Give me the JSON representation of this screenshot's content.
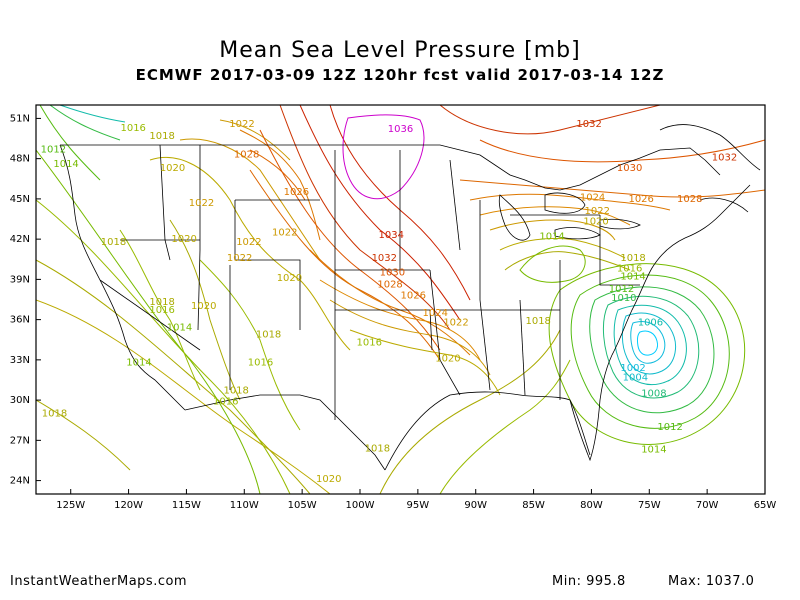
{
  "title": "Mean Sea Level Pressure [mb]",
  "subtitle": "ECMWF 2017-03-09 12Z 120hr fcst valid 2017-03-14 12Z",
  "footer": {
    "site": "InstantWeatherMaps.com",
    "min_label": "Min:",
    "min_value": "995.8",
    "max_label": "Max:",
    "max_value": "1037.0"
  },
  "axes": {
    "lat_ticks": [
      "51N",
      "48N",
      "45N",
      "42N",
      "39N",
      "36N",
      "33N",
      "30N",
      "27N",
      "24N"
    ],
    "lon_ticks": [
      "125W",
      "120W",
      "115W",
      "110W",
      "105W",
      "100W",
      "95W",
      "90W",
      "85W",
      "80W",
      "75W",
      "70W",
      "65W"
    ]
  },
  "chart_data": {
    "type": "contour-map",
    "variable": "Mean Sea Level Pressure",
    "units": "mb",
    "min": 995.8,
    "max": 1037.0,
    "extent": {
      "lon": [
        -128,
        -65
      ],
      "lat": [
        23,
        52
      ]
    },
    "contour_labels": [
      {
        "value": "1036",
        "lon": -96.5,
        "lat": 50.2,
        "color": "#cc00cc"
      },
      {
        "value": "1034",
        "lon": -97.3,
        "lat": 42.3,
        "color": "#cc2200"
      },
      {
        "value": "1032",
        "lon": -97.9,
        "lat": 40.6,
        "color": "#cc3300"
      },
      {
        "value": "1030",
        "lon": -97.2,
        "lat": 39.5,
        "color": "#dd5500"
      },
      {
        "value": "1028",
        "lon": -97.4,
        "lat": 38.6,
        "color": "#dd6600"
      },
      {
        "value": "1026",
        "lon": -95.4,
        "lat": 37.8,
        "color": "#dd7700"
      },
      {
        "value": "1024",
        "lon": -93.5,
        "lat": 36.5,
        "color": "#dd8800"
      },
      {
        "value": "1022",
        "lon": -91.7,
        "lat": 35.8,
        "color": "#cc9900"
      },
      {
        "value": "1020",
        "lon": -92.4,
        "lat": 33.1,
        "color": "#bbaa00"
      },
      {
        "value": "1018",
        "lon": -84.6,
        "lat": 35.9,
        "color": "#aaaa00"
      },
      {
        "value": "1032",
        "lon": -80.2,
        "lat": 50.6,
        "color": "#cc3300"
      },
      {
        "value": "1030",
        "lon": -76.7,
        "lat": 47.3,
        "color": "#dd5500"
      },
      {
        "value": "1032",
        "lon": -68.5,
        "lat": 48.1,
        "color": "#cc3300"
      },
      {
        "value": "1028",
        "lon": -71.5,
        "lat": 45.0,
        "color": "#dd6600"
      },
      {
        "value": "1026",
        "lon": -75.7,
        "lat": 45.0,
        "color": "#dd7700"
      },
      {
        "value": "1024",
        "lon": -79.9,
        "lat": 45.1,
        "color": "#dd8800"
      },
      {
        "value": "1022",
        "lon": -79.5,
        "lat": 44.1,
        "color": "#cc9900"
      },
      {
        "value": "1020",
        "lon": -79.6,
        "lat": 43.3,
        "color": "#bbaa00"
      },
      {
        "value": "1014",
        "lon": -83.4,
        "lat": 42.2,
        "color": "#77bb00"
      },
      {
        "value": "1018",
        "lon": -76.4,
        "lat": 40.6,
        "color": "#aaaa00"
      },
      {
        "value": "1016",
        "lon": -76.7,
        "lat": 39.8,
        "color": "#99bb00"
      },
      {
        "value": "1014",
        "lon": -76.4,
        "lat": 39.2,
        "color": "#77bb00"
      },
      {
        "value": "1012",
        "lon": -77.4,
        "lat": 38.3,
        "color": "#55bb11"
      },
      {
        "value": "1010",
        "lon": -77.2,
        "lat": 37.6,
        "color": "#33bb44"
      },
      {
        "value": "1006",
        "lon": -74.9,
        "lat": 35.8,
        "color": "#11bbaa"
      },
      {
        "value": "1002",
        "lon": -76.4,
        "lat": 32.4,
        "color": "#11bbdd"
      },
      {
        "value": "1004",
        "lon": -76.2,
        "lat": 31.7,
        "color": "#11bbcc"
      },
      {
        "value": "1008",
        "lon": -74.6,
        "lat": 30.5,
        "color": "#22bb77"
      },
      {
        "value": "1012",
        "lon": -73.2,
        "lat": 28.0,
        "color": "#55bb11"
      },
      {
        "value": "1014",
        "lon": -74.6,
        "lat": 26.3,
        "color": "#77bb00"
      },
      {
        "value": "1016",
        "lon": -119.6,
        "lat": 50.3,
        "color": "#99bb00"
      },
      {
        "value": "1018",
        "lon": -117.1,
        "lat": 49.7,
        "color": "#aaaa00"
      },
      {
        "value": "1022",
        "lon": -110.2,
        "lat": 50.6,
        "color": "#cc9900"
      },
      {
        "value": "1012",
        "lon": -126.5,
        "lat": 48.7,
        "color": "#55bb11"
      },
      {
        "value": "1014",
        "lon": -125.4,
        "lat": 47.6,
        "color": "#77bb00"
      },
      {
        "value": "1028",
        "lon": -109.8,
        "lat": 48.3,
        "color": "#dd6600"
      },
      {
        "value": "1020",
        "lon": -116.2,
        "lat": 47.3,
        "color": "#bbaa00"
      },
      {
        "value": "1026",
        "lon": -105.5,
        "lat": 45.5,
        "color": "#dd7700"
      },
      {
        "value": "1022",
        "lon": -113.7,
        "lat": 44.7,
        "color": "#cc9900"
      },
      {
        "value": "1020",
        "lon": -115.2,
        "lat": 42.0,
        "color": "#bbaa00"
      },
      {
        "value": "1018",
        "lon": -121.3,
        "lat": 41.8,
        "color": "#aaaa00"
      },
      {
        "value": "1022",
        "lon": -109.6,
        "lat": 41.8,
        "color": "#cc9900"
      },
      {
        "value": "1022",
        "lon": -110.4,
        "lat": 40.6,
        "color": "#cc9900"
      },
      {
        "value": "1020",
        "lon": -106.1,
        "lat": 39.1,
        "color": "#bbaa00"
      },
      {
        "value": "1022",
        "lon": -106.5,
        "lat": 42.5,
        "color": "#cc9900"
      },
      {
        "value": "1018",
        "lon": -117.1,
        "lat": 37.3,
        "color": "#aaaa00"
      },
      {
        "value": "1016",
        "lon": -117.1,
        "lat": 36.7,
        "color": "#99bb00"
      },
      {
        "value": "1020",
        "lon": -113.5,
        "lat": 37.0,
        "color": "#bbaa00"
      },
      {
        "value": "1014",
        "lon": -115.6,
        "lat": 35.4,
        "color": "#77bb00"
      },
      {
        "value": "1018",
        "lon": -107.9,
        "lat": 34.9,
        "color": "#aaaa00"
      },
      {
        "value": "1016",
        "lon": -99.2,
        "lat": 34.3,
        "color": "#99bb00"
      },
      {
        "value": "1014",
        "lon": -119.1,
        "lat": 32.8,
        "color": "#77bb00"
      },
      {
        "value": "1016",
        "lon": -108.6,
        "lat": 32.8,
        "color": "#99bb00"
      },
      {
        "value": "1018",
        "lon": -110.7,
        "lat": 30.7,
        "color": "#aaaa00"
      },
      {
        "value": "1016",
        "lon": -111.6,
        "lat": 29.9,
        "color": "#99bb00"
      },
      {
        "value": "1018",
        "lon": -126.4,
        "lat": 29.0,
        "color": "#aaaa00"
      },
      {
        "value": "1018",
        "lon": -98.5,
        "lat": 26.4,
        "color": "#aaaa00"
      },
      {
        "value": "1020",
        "lon": -102.7,
        "lat": 24.1,
        "color": "#bbaa00"
      }
    ]
  }
}
